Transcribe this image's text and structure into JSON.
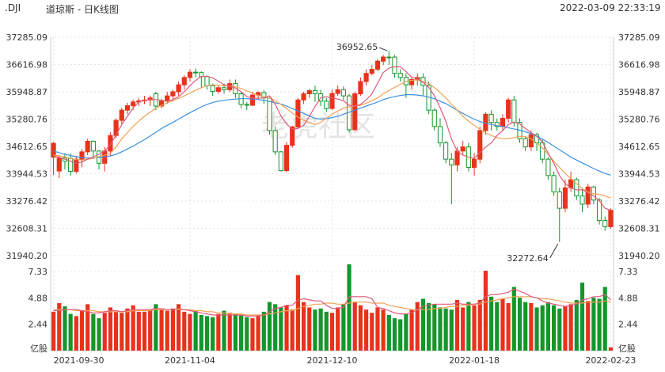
{
  "header": {
    "symbol": ".DJI",
    "title": "道琼斯 - 日K线图",
    "timestamp": "2022-03-09 22:33:19"
  },
  "watermark": {
    "text": "老虎社区"
  },
  "colors": {
    "up": "#e8321c",
    "down": "#14962b",
    "ma5": "#e05a7a",
    "ma10": "#f2a154",
    "ma20": "#3a8fe0",
    "grid": "#e6e6e6",
    "axis_text": "#333333"
  },
  "chart_data": [
    {
      "type": "candlestick",
      "y_ticks": [
        "37285.09",
        "36616.98",
        "35948.87",
        "35280.76",
        "34612.65",
        "33944.53",
        "33276.42",
        "32608.31",
        "31940.20"
      ],
      "ylim": [
        31940.2,
        37285.09
      ],
      "x_ticks": [
        "2021-09-30",
        "2021-11-04",
        "2021-12-10",
        "2022-01-18",
        "2022-02-23"
      ],
      "annotations": [
        {
          "text": "36952.65",
          "value": 36952.65,
          "type": "high"
        },
        {
          "text": "32272.64",
          "value": 32272.64,
          "type": "low"
        }
      ],
      "candles": [
        [
          34350,
          34690,
          33910,
          34720
        ],
        [
          34010,
          34330,
          33840,
          34400
        ],
        [
          34330,
          34250,
          34050,
          34450
        ],
        [
          34320,
          34002,
          33900,
          34450
        ],
        [
          34002,
          34300,
          33950,
          34380
        ],
        [
          34300,
          34480,
          34100,
          34550
        ],
        [
          34480,
          34740,
          34400,
          34800
        ],
        [
          34740,
          34500,
          34350,
          34760
        ],
        [
          34500,
          34200,
          34050,
          34520
        ],
        [
          34200,
          34500,
          34000,
          34600
        ],
        [
          34500,
          34880,
          34380,
          34960
        ],
        [
          34880,
          35250,
          34820,
          35300
        ],
        [
          35250,
          35500,
          35150,
          35560
        ],
        [
          35500,
          35610,
          35400,
          35680
        ],
        [
          35610,
          35700,
          35500,
          35760
        ],
        [
          35700,
          35730,
          35600,
          35800
        ],
        [
          35730,
          35750,
          35650,
          35850
        ],
        [
          35750,
          35800,
          35600,
          35860
        ],
        [
          35900,
          35600,
          35500,
          35950
        ],
        [
          35600,
          35720,
          35550,
          35780
        ],
        [
          35720,
          35850,
          35650,
          35950
        ],
        [
          35850,
          35950,
          35750,
          36000
        ],
        [
          35950,
          36120,
          35850,
          36200
        ],
        [
          36120,
          36300,
          36000,
          36350
        ],
        [
          36300,
          36430,
          36200,
          36500
        ],
        [
          36430,
          36420,
          36300,
          36520
        ],
        [
          36420,
          36320,
          36050,
          36450
        ],
        [
          36320,
          36100,
          36000,
          36350
        ],
        [
          36100,
          35960,
          35850,
          36150
        ],
        [
          35960,
          36050,
          35900,
          36120
        ],
        [
          36050,
          36000,
          35900,
          36150
        ],
        [
          36000,
          36150,
          35950,
          36250
        ],
        [
          36150,
          35900,
          35800,
          36250
        ],
        [
          35900,
          35640,
          35550,
          35950
        ],
        [
          35640,
          35620,
          35500,
          35700
        ],
        [
          35620,
          35870,
          35600,
          35950
        ],
        [
          35870,
          35930,
          35750,
          35960
        ],
        [
          35930,
          35800,
          35650,
          35990
        ],
        [
          35800,
          35000,
          34900,
          35820
        ],
        [
          35000,
          34480,
          34400,
          35100
        ],
        [
          34480,
          34020,
          34000,
          34500
        ],
        [
          34020,
          34640,
          33980,
          34720
        ],
        [
          34640,
          35090,
          34580,
          35120
        ],
        [
          35090,
          35750,
          35050,
          35800
        ],
        [
          35750,
          35900,
          35650,
          35950
        ],
        [
          35900,
          35980,
          35800,
          36020
        ],
        [
          35980,
          35900,
          35700,
          36100
        ],
        [
          35900,
          35720,
          35600,
          36000
        ],
        [
          35720,
          35540,
          35450,
          35800
        ],
        [
          35540,
          35910,
          35500,
          36000
        ],
        [
          35910,
          36000,
          35850,
          36100
        ],
        [
          36000,
          35850,
          35750,
          36080
        ],
        [
          35850,
          35020,
          34950,
          35900
        ],
        [
          35020,
          35900,
          35000,
          35950
        ],
        [
          35900,
          36200,
          35850,
          36300
        ],
        [
          36200,
          36400,
          36100,
          36500
        ],
        [
          36400,
          36500,
          36350,
          36600
        ],
        [
          36500,
          36700,
          36450,
          36750
        ],
        [
          36700,
          36800,
          36600,
          36850
        ],
        [
          36800,
          36799,
          36600,
          36952.65
        ],
        [
          36799,
          36400,
          36300,
          36850
        ],
        [
          36400,
          36300,
          36200,
          36500
        ],
        [
          36300,
          36120,
          35800,
          36400
        ],
        [
          36120,
          36250,
          36000,
          36300
        ],
        [
          36250,
          36300,
          36100,
          36400
        ],
        [
          36300,
          36110,
          35850,
          36400
        ],
        [
          36110,
          35500,
          35400,
          36200
        ],
        [
          35500,
          35100,
          35000,
          35550
        ],
        [
          35100,
          34700,
          34600,
          35300
        ],
        [
          34700,
          34300,
          34200,
          34750
        ],
        [
          34300,
          34160,
          33200,
          34450
        ],
        [
          34160,
          34500,
          34000,
          34600
        ],
        [
          34500,
          34600,
          34400,
          34750
        ],
        [
          34600,
          34100,
          34000,
          34700
        ],
        [
          34100,
          34300,
          33900,
          34450
        ],
        [
          34300,
          35000,
          34200,
          35100
        ],
        [
          35000,
          35400,
          34900,
          35450
        ],
        [
          35400,
          35200,
          35000,
          35500
        ],
        [
          35200,
          35100,
          35000,
          35300
        ],
        [
          35100,
          35300,
          35000,
          35400
        ],
        [
          35300,
          35750,
          35200,
          35800
        ],
        [
          35750,
          35200,
          35100,
          35850
        ],
        [
          35200,
          34800,
          34700,
          35300
        ],
        [
          34800,
          34600,
          34500,
          34850
        ],
        [
          34600,
          34900,
          34500,
          35000
        ],
        [
          34900,
          34700,
          34500,
          34950
        ],
        [
          34700,
          34300,
          34200,
          34800
        ],
        [
          34300,
          33900,
          33800,
          34350
        ],
        [
          33900,
          33500,
          33400,
          34000
        ],
        [
          33500,
          33100,
          32272.64,
          33600
        ],
        [
          33100,
          33600,
          33000,
          33800
        ],
        [
          33600,
          33800,
          33500,
          34000
        ],
        [
          33800,
          33400,
          33300,
          33850
        ],
        [
          33400,
          33200,
          33000,
          33600
        ],
        [
          33200,
          33620,
          33100,
          33700
        ],
        [
          33620,
          33300,
          33200,
          33650
        ],
        [
          33300,
          32800,
          32700,
          33350
        ],
        [
          32800,
          32650,
          32550,
          32900
        ],
        [
          32650,
          33050,
          32600,
          33100
        ]
      ],
      "ma5": [
        34380,
        34340,
        34300,
        34250,
        34200,
        34230,
        34300,
        34360,
        34420,
        34500,
        34650,
        34900,
        35150,
        35350,
        35550,
        35700,
        35740,
        35760,
        35760,
        35740,
        35720,
        35760,
        35830,
        35950,
        36100,
        36230,
        36320,
        36330,
        36290,
        36210,
        36120,
        36080,
        36040,
        35950,
        35830,
        35800,
        35790,
        35800,
        35850,
        35640,
        35360,
        35160,
        35040,
        35050,
        35130,
        35350,
        35590,
        35800,
        35830,
        35800,
        35770,
        35730,
        35620,
        35600,
        35640,
        35750,
        35900,
        36160,
        36420,
        36530,
        36560,
        36560,
        36440,
        36310,
        36270,
        36180,
        36060,
        35850,
        35560,
        35230,
        34790,
        34500,
        34400,
        34350,
        34320,
        34460,
        34600,
        34700,
        34880,
        35000,
        35150,
        35210,
        35160,
        35050,
        34950,
        34860,
        34720,
        34450,
        34200,
        33900,
        33700,
        33600,
        33550,
        33550,
        33480,
        33400,
        33280,
        33100,
        33050
      ],
      "ma10": [
        34400,
        34380,
        34350,
        34320,
        34290,
        34280,
        34300,
        34320,
        34360,
        34400,
        34450,
        34600,
        34800,
        34950,
        35100,
        35230,
        35350,
        35450,
        35550,
        35620,
        35680,
        35730,
        35790,
        35850,
        35920,
        35990,
        36050,
        36100,
        36120,
        36110,
        36100,
        36090,
        36070,
        36030,
        35970,
        35920,
        35860,
        35830,
        35800,
        35730,
        35640,
        35540,
        35430,
        35330,
        35250,
        35200,
        35150,
        35200,
        35300,
        35400,
        35480,
        35550,
        35580,
        35600,
        35620,
        35670,
        35730,
        35800,
        35900,
        35980,
        36060,
        36130,
        36200,
        36230,
        36240,
        36200,
        36150,
        36050,
        35930,
        35800,
        35650,
        35500,
        35350,
        35230,
        35130,
        35030,
        34950,
        34880,
        34830,
        34800,
        34800,
        34830,
        34860,
        34850,
        34800,
        34700,
        34580,
        34420,
        34250,
        34100,
        33950,
        33820,
        33700,
        33580,
        33500,
        33450,
        33440,
        33400,
        33350
      ],
      "ma20": [
        34500,
        34460,
        34420,
        34390,
        34360,
        34340,
        34330,
        34330,
        34340,
        34360,
        34380,
        34420,
        34480,
        34550,
        34620,
        34700,
        34780,
        34870,
        34960,
        35050,
        35130,
        35200,
        35280,
        35360,
        35440,
        35510,
        35580,
        35640,
        35690,
        35720,
        35740,
        35760,
        35770,
        35780,
        35780,
        35770,
        35760,
        35740,
        35710,
        35680,
        35650,
        35600,
        35540,
        35480,
        35420,
        35360,
        35300,
        35280,
        35290,
        35320,
        35350,
        35400,
        35450,
        35500,
        35550,
        35600,
        35650,
        35700,
        35760,
        35800,
        35830,
        35860,
        35880,
        35880,
        35870,
        35850,
        35820,
        35780,
        35720,
        35660,
        35580,
        35500,
        35420,
        35340,
        35280,
        35220,
        35180,
        35150,
        35120,
        35100,
        35070,
        35040,
        35010,
        34970,
        34920,
        34860,
        34790,
        34710,
        34620,
        34530,
        34440,
        34350,
        34280,
        34210,
        34140,
        34070,
        34010,
        33950,
        33910
      ]
    },
    {
      "type": "bar",
      "y_ticks": [
        "7.33",
        "4.88",
        "2.44"
      ],
      "ylim": [
        0,
        7.33
      ],
      "y_unit": "亿股",
      "volumes": [
        3.6,
        4.4,
        4.1,
        3.4,
        3.2,
        3.7,
        4.3,
        3.4,
        3.0,
        3.5,
        4.0,
        3.6,
        3.5,
        3.9,
        4.2,
        3.6,
        3.6,
        3.8,
        4.3,
        3.8,
        3.7,
        3.9,
        4.3,
        3.6,
        3.4,
        3.7,
        3.3,
        3.2,
        3.1,
        3.4,
        3.7,
        3.5,
        3.4,
        3.3,
        3.1,
        3.0,
        3.3,
        3.6,
        4.5,
        4.3,
        4.0,
        4.2,
        3.8,
        7.0,
        4.5,
        4.0,
        3.8,
        3.9,
        3.6,
        3.5,
        4.0,
        4.3,
        8.0,
        4.5,
        4.2,
        3.8,
        3.5,
        4.0,
        3.8,
        3.3,
        3.0,
        2.9,
        3.4,
        3.8,
        4.5,
        4.8,
        4.4,
        4.3,
        4.0,
        3.9,
        3.8,
        4.7,
        4.0,
        4.5,
        4.2,
        4.7,
        7.4,
        5.0,
        4.5,
        4.8,
        4.4,
        5.9,
        4.9,
        4.5,
        4.4,
        4.0,
        4.2,
        4.5,
        4.2,
        3.9,
        4.1,
        4.3,
        4.7,
        6.3,
        4.6,
        4.9,
        4.8,
        5.9,
        0.3
      ],
      "mavol5": [
        3.7,
        3.7,
        3.8,
        3.8,
        3.8,
        3.7,
        3.6,
        3.5,
        3.5,
        3.6,
        3.7,
        3.7,
        3.6,
        3.7,
        3.8,
        3.8,
        3.8,
        3.8,
        3.9,
        3.9,
        3.8,
        3.8,
        3.9,
        3.8,
        3.7,
        3.6,
        3.5,
        3.4,
        3.3,
        3.3,
        3.3,
        3.3,
        3.3,
        3.3,
        3.2,
        3.2,
        3.2,
        3.3,
        3.6,
        3.9,
        4.0,
        4.2,
        4.2,
        4.7,
        4.8,
        4.7,
        4.6,
        4.6,
        4.2,
        3.9,
        3.9,
        4.0,
        5.0,
        5.0,
        5.0,
        5.0,
        4.8,
        4.0,
        3.9,
        3.7,
        3.5,
        3.4,
        3.4,
        3.5,
        3.8,
        4.1,
        4.2,
        4.3,
        4.3,
        4.3,
        4.3,
        4.4,
        4.3,
        4.3,
        4.3,
        4.4,
        5.0,
        5.2,
        5.2,
        5.3,
        5.4,
        5.7,
        5.5,
        5.3,
        5.0,
        4.9,
        4.6,
        4.4,
        4.3,
        4.2,
        4.1,
        4.2,
        4.3,
        4.7,
        4.8,
        5.0,
        5.0,
        5.2,
        4.7
      ],
      "mavol10": [
        3.8,
        3.8,
        3.8,
        3.8,
        3.7,
        3.7,
        3.7,
        3.7,
        3.6,
        3.6,
        3.6,
        3.6,
        3.6,
        3.6,
        3.7,
        3.7,
        3.7,
        3.7,
        3.8,
        3.8,
        3.8,
        3.8,
        3.8,
        3.8,
        3.8,
        3.7,
        3.7,
        3.6,
        3.6,
        3.5,
        3.5,
        3.4,
        3.4,
        3.4,
        3.3,
        3.3,
        3.3,
        3.3,
        3.4,
        3.5,
        3.6,
        3.7,
        3.7,
        3.9,
        4.1,
        4.2,
        4.3,
        4.3,
        4.4,
        4.4,
        4.3,
        4.3,
        4.4,
        4.5,
        4.5,
        4.5,
        4.4,
        4.4,
        4.4,
        4.2,
        4.1,
        4.0,
        3.9,
        3.8,
        3.8,
        3.8,
        3.8,
        3.9,
        3.9,
        4.0,
        4.1,
        4.1,
        4.2,
        4.2,
        4.3,
        4.3,
        4.5,
        4.6,
        4.7,
        4.8,
        4.9,
        5.0,
        5.0,
        5.0,
        5.0,
        4.9,
        4.8,
        4.8,
        4.7,
        4.6,
        4.5,
        4.4,
        4.4,
        4.4,
        4.5,
        4.5,
        4.5,
        4.6,
        4.5
      ]
    }
  ]
}
